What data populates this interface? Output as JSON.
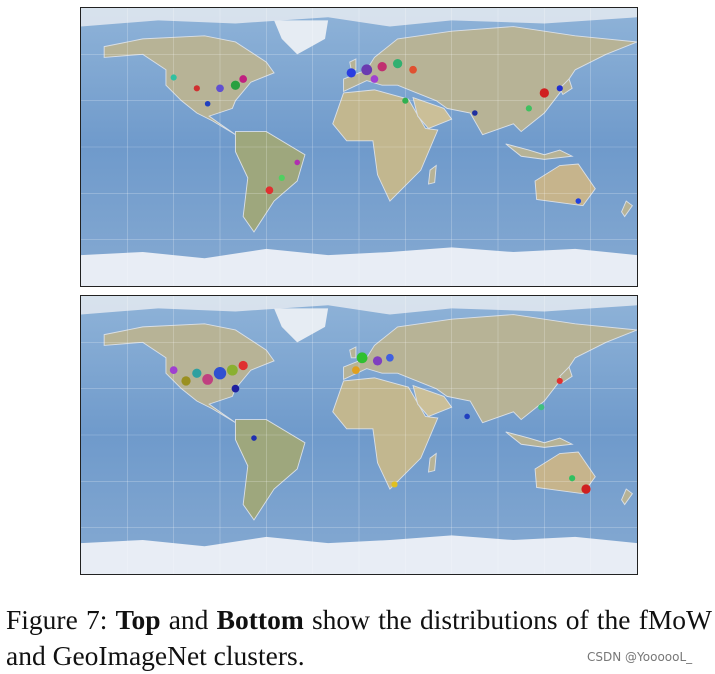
{
  "figure": {
    "caption": {
      "label": "Figure 7:",
      "bold_1": "Top",
      "joiner": "and",
      "bold_2": "Bottom",
      "rest": "show the distributions of the fMoW and GeoImageNet clusters."
    }
  },
  "watermark": "CSDN @YoooooL_"
}
